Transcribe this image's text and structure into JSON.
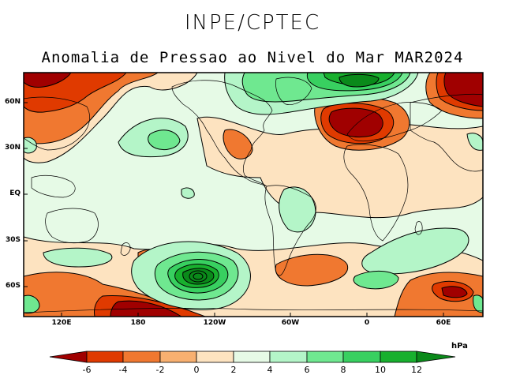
{
  "header": {
    "org": "INPE/CPTEC",
    "title": "Anomalia de Pressao ao Nivel do Mar MAR2024"
  },
  "axes": {
    "lat_labels": [
      "60N",
      "30N",
      "EQ",
      "30S",
      "60S"
    ],
    "lon_labels": [
      "120E",
      "180",
      "120W",
      "60W",
      "0",
      "60E"
    ]
  },
  "colorbar": {
    "unit": "hPa",
    "ticks": [
      "-6",
      "-4",
      "-2",
      "0",
      "2",
      "4",
      "6",
      "8",
      "10",
      "12"
    ],
    "colors": [
      "#a00000",
      "#e03a00",
      "#f07830",
      "#f8b070",
      "#fde3c0",
      "#e6fae6",
      "#b4f5c8",
      "#6fe890",
      "#38d060",
      "#18b02e",
      "#0a8a1a"
    ]
  },
  "map_data": {
    "variable": "Sea level pressure anomaly",
    "period": "MAR2024",
    "source": "INPE/CPTEC",
    "features": [
      {
        "name": "north-atlantic-low",
        "sign": "negative",
        "min_hpa": -8
      },
      {
        "name": "north-atlantic-high",
        "sign": "positive",
        "max_hpa": 10
      },
      {
        "name": "north-pacific-low",
        "sign": "negative",
        "min_hpa": -6
      },
      {
        "name": "siberia-low",
        "sign": "negative",
        "min_hpa": -8
      },
      {
        "name": "south-pacific-high",
        "sign": "positive",
        "max_hpa": 14
      },
      {
        "name": "antarctic-lows",
        "sign": "negative",
        "min_hpa": -8
      }
    ]
  }
}
